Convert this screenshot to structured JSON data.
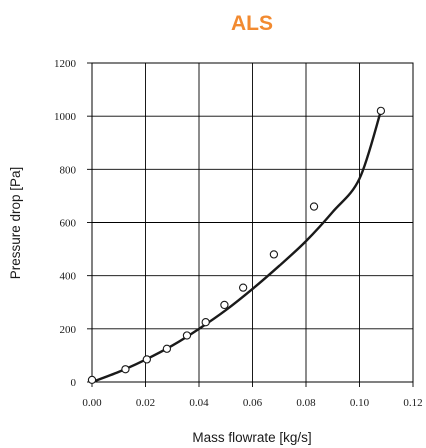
{
  "chart_data": {
    "type": "scatter",
    "title": "ALS",
    "xlabel": "Mass flowrate [kg/s]",
    "ylabel": "Pressure drop [Pa]",
    "xlim": [
      0,
      0.12
    ],
    "ylim": [
      0,
      1200
    ],
    "xticks": [
      "0.00",
      "0.02",
      "0.04",
      "0.06",
      "0.08",
      "0.10",
      "0.12"
    ],
    "yticks": [
      "0",
      "200",
      "400",
      "600",
      "800",
      "1000",
      "1200"
    ],
    "grid": true,
    "colors": {
      "title": "#f28a30",
      "line": "#1a1a1a",
      "marker_fill": "#ffffff"
    },
    "series": [
      {
        "marker": "open-circle",
        "x": [
          0.0,
          0.0125,
          0.0205,
          0.028,
          0.0355,
          0.0425,
          0.0495,
          0.0565,
          0.068,
          0.083,
          0.108
        ],
        "y": [
          8,
          48,
          85,
          125,
          175,
          225,
          290,
          355,
          480,
          660,
          1020
        ]
      },
      {
        "type": "line",
        "x": [
          0.0,
          0.01,
          0.02,
          0.03,
          0.04,
          0.05,
          0.06,
          0.07,
          0.08,
          0.09,
          0.1,
          0.108
        ],
        "y": [
          0,
          38,
          84,
          137,
          200,
          270,
          350,
          437,
          530,
          640,
          765,
          1020
        ]
      }
    ]
  }
}
